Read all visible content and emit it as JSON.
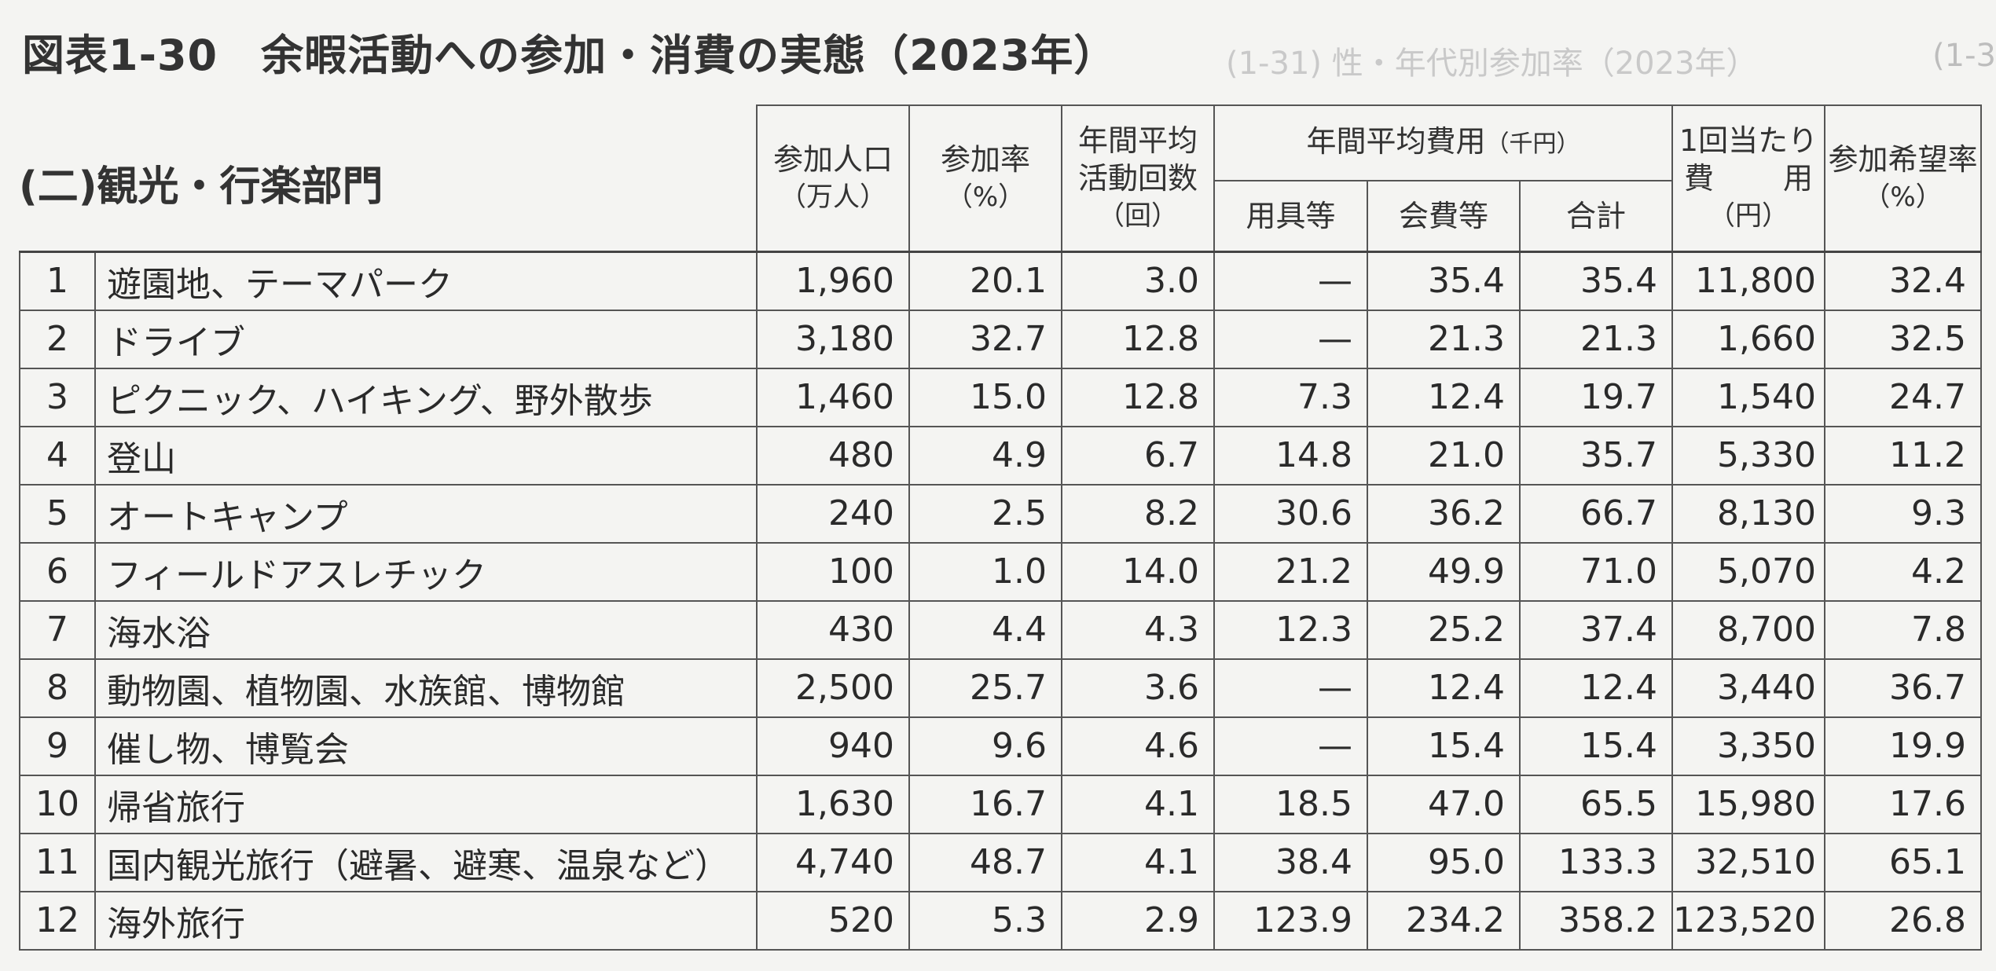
{
  "title": "図表1-30　余暇活動への参加・消費の実態（2023年）",
  "section": "(二)観光・行楽部門",
  "ghost_text": "(1-31) 性・年代別参加率（2023年）",
  "ghost_text_right": "(1-3",
  "headers": {
    "participants": "参加人口",
    "participants_unit": "（万人）",
    "rate": "参加率",
    "rate_unit": "（%）",
    "freq_line1": "年間平均",
    "freq_line2": "活動回数",
    "freq_unit": "（回）",
    "cost_group": "年間平均費用",
    "cost_group_unit": "（千円）",
    "equipment": "用具等",
    "fees": "会費等",
    "total": "合計",
    "per_time_line1": "1回当たり",
    "per_time_line2a": "費",
    "per_time_line2b": "用",
    "per_time_unit": "（円）",
    "wish": "参加希望率",
    "wish_unit": "（%）"
  },
  "rows": [
    {
      "no": "1",
      "name": "遊園地、テーマパーク",
      "participants": "1,960",
      "rate": "20.1",
      "freq": "3.0",
      "equipment": "—",
      "fees": "35.4",
      "total": "35.4",
      "per_time": "11,800",
      "wish": "32.4"
    },
    {
      "no": "2",
      "name": "ドライブ",
      "participants": "3,180",
      "rate": "32.7",
      "freq": "12.8",
      "equipment": "—",
      "fees": "21.3",
      "total": "21.3",
      "per_time": "1,660",
      "wish": "32.5"
    },
    {
      "no": "3",
      "name": "ピクニック、ハイキング、野外散歩",
      "participants": "1,460",
      "rate": "15.0",
      "freq": "12.8",
      "equipment": "7.3",
      "fees": "12.4",
      "total": "19.7",
      "per_time": "1,540",
      "wish": "24.7"
    },
    {
      "no": "4",
      "name": "登山",
      "participants": "480",
      "rate": "4.9",
      "freq": "6.7",
      "equipment": "14.8",
      "fees": "21.0",
      "total": "35.7",
      "per_time": "5,330",
      "wish": "11.2"
    },
    {
      "no": "5",
      "name": "オートキャンプ",
      "participants": "240",
      "rate": "2.5",
      "freq": "8.2",
      "equipment": "30.6",
      "fees": "36.2",
      "total": "66.7",
      "per_time": "8,130",
      "wish": "9.3"
    },
    {
      "no": "6",
      "name": "フィールドアスレチック",
      "participants": "100",
      "rate": "1.0",
      "freq": "14.0",
      "equipment": "21.2",
      "fees": "49.9",
      "total": "71.0",
      "per_time": "5,070",
      "wish": "4.2"
    },
    {
      "no": "7",
      "name": "海水浴",
      "participants": "430",
      "rate": "4.4",
      "freq": "4.3",
      "equipment": "12.3",
      "fees": "25.2",
      "total": "37.4",
      "per_time": "8,700",
      "wish": "7.8"
    },
    {
      "no": "8",
      "name": "動物園、植物園、水族館、博物館",
      "participants": "2,500",
      "rate": "25.7",
      "freq": "3.6",
      "equipment": "—",
      "fees": "12.4",
      "total": "12.4",
      "per_time": "3,440",
      "wish": "36.7"
    },
    {
      "no": "9",
      "name": "催し物、博覧会",
      "participants": "940",
      "rate": "9.6",
      "freq": "4.6",
      "equipment": "—",
      "fees": "15.4",
      "total": "15.4",
      "per_time": "3,350",
      "wish": "19.9"
    },
    {
      "no": "10",
      "name": "帰省旅行",
      "participants": "1,630",
      "rate": "16.7",
      "freq": "4.1",
      "equipment": "18.5",
      "fees": "47.0",
      "total": "65.5",
      "per_time": "15,980",
      "wish": "17.6"
    },
    {
      "no": "11",
      "name": "国内観光旅行（避暑、避寒、温泉など）",
      "participants": "4,740",
      "rate": "48.7",
      "freq": "4.1",
      "equipment": "38.4",
      "fees": "95.0",
      "total": "133.3",
      "per_time": "32,510",
      "wish": "65.1"
    },
    {
      "no": "12",
      "name": "海外旅行",
      "participants": "520",
      "rate": "5.3",
      "freq": "2.9",
      "equipment": "123.9",
      "fees": "234.2",
      "total": "358.2",
      "per_time": "123,520",
      "wish": "26.8"
    }
  ]
}
